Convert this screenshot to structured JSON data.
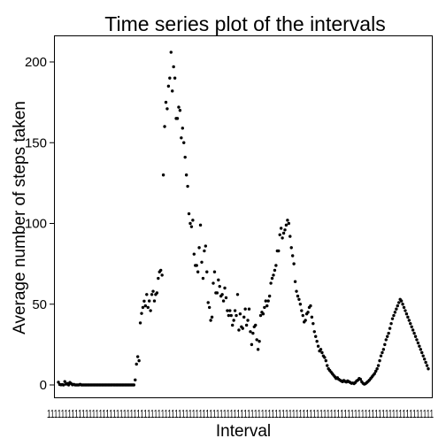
{
  "chart_data": {
    "type": "scatter",
    "title": "Time series plot of the intervals",
    "xlabel": "Interval",
    "ylabel": "Average number of steps taken",
    "xlim": [
      0,
      2355
    ],
    "ylim": [
      0,
      206
    ],
    "yticks": [
      0,
      50,
      100,
      150,
      200
    ],
    "x_tick_text": "1111111111111111111111111111111111111111111111111111111111111111111111111111111111111111111111111111111111111111",
    "point_color": "#000000",
    "legend": "none",
    "grid": false,
    "y": [
      1.7,
      0.3,
      0.1,
      0.2,
      0.0,
      2.1,
      0.5,
      0.9,
      0.0,
      1.5,
      0.8,
      0.1,
      0.4,
      0.0,
      0.0,
      0.0,
      0.0,
      0.4,
      0.0,
      0.0,
      0.0,
      0.0,
      0.0,
      0.0,
      0.0,
      0.0,
      0.0,
      0.0,
      0.0,
      0.0,
      0.0,
      0.0,
      0.0,
      0.0,
      0.0,
      0.0,
      0.0,
      0.0,
      0.0,
      0.0,
      0.0,
      0.0,
      0.0,
      0.0,
      0.0,
      0.0,
      0.0,
      0.0,
      0.0,
      0.0,
      0.0,
      0.0,
      0.0,
      0.0,
      0.0,
      0.0,
      0.0,
      0.0,
      0.0,
      0.0,
      3.1,
      12.9,
      17.5,
      15.0,
      38.4,
      44.3,
      48.0,
      51.9,
      49.0,
      56.0,
      48.0,
      52.0,
      46.0,
      56.0,
      58.0,
      52.0,
      56.0,
      57.0,
      66.0,
      70.0,
      71.0,
      68.0,
      130.0,
      160.0,
      175.0,
      171.0,
      185.0,
      190.0,
      206.0,
      182.0,
      197.0,
      190.0,
      165.0,
      165.0,
      172.0,
      170.0,
      153.0,
      159.0,
      150.0,
      141.0,
      130.0,
      123.0,
      106.0,
      100.0,
      98.0,
      102.0,
      81.0,
      74.0,
      74.0,
      70.0,
      85.0,
      99.0,
      76.0,
      66.0,
      83.0,
      86.0,
      70.0,
      51.0,
      48.0,
      40.0,
      42.0,
      63.0,
      70.0,
      57.0,
      57.0,
      65.0,
      61.0,
      55.0,
      56.0,
      52.0,
      60.0,
      54.0,
      46.0,
      43.0,
      46.0,
      43.0,
      37.0,
      40.0,
      46.0,
      43.0,
      56.0,
      34.0,
      44.0,
      36.0,
      35.0,
      42.0,
      47.0,
      37.0,
      40.0,
      47.0,
      33.0,
      25.0,
      32.0,
      36.0,
      37.0,
      28.0,
      22.0,
      27.0,
      43.0,
      45.0,
      44.0,
      48.0,
      52.0,
      49.0,
      52.0,
      55.0,
      63.0,
      66.0,
      68.0,
      71.0,
      74.0,
      83.0,
      83.0,
      93.0,
      97.0,
      91.0,
      94.0,
      96.0,
      99.0,
      102.0,
      100.0,
      92.0,
      85.0,
      80.0,
      75.0,
      64.0,
      58.0,
      55.0,
      53.0,
      50.0,
      46.0,
      43.0,
      39.0,
      40.0,
      44.0,
      45.0,
      48.0,
      49.0,
      42.0,
      38.0,
      33.0,
      30.0,
      27.0,
      24.0,
      21.0,
      22.0,
      20.0,
      18.0,
      17.0,
      15.0,
      12.0,
      10.0,
      9.0,
      8.0,
      7.0,
      6.0,
      5.0,
      4.0,
      4.5,
      3.5,
      3.0,
      2.5,
      2.0,
      2.8,
      2.2,
      1.8,
      2.5,
      2.0,
      1.5,
      1.0,
      1.2,
      0.8,
      1.5,
      2.5,
      3.0,
      4.0,
      3.5,
      2.0,
      1.0,
      0.5,
      0.8,
      1.5,
      2.2,
      3.0,
      4.0,
      5.0,
      6.0,
      7.0,
      8.5,
      10.0,
      12.0,
      15.0,
      18.0,
      20.0,
      22.0,
      25.0,
      28.0,
      30.0,
      32.0,
      35.0,
      38.0,
      41.0,
      43.0,
      45.0,
      47.0,
      49.0,
      51.0,
      53.0,
      52.0,
      50.0,
      48.0,
      46.0,
      44.0,
      42.0,
      40.0,
      38.0,
      36.0,
      34.0,
      32.0,
      30.0,
      28.0,
      26.0,
      24.0,
      22.0,
      20.0,
      18.0,
      16.0,
      14.0,
      12.0,
      10.0
    ]
  }
}
